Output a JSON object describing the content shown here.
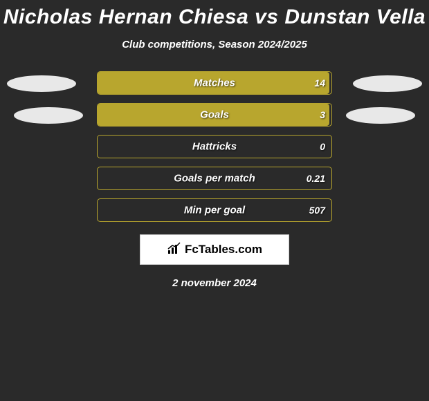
{
  "title": "Nicholas Hernan Chiesa vs Dunstan Vella",
  "subtitle": "Club competitions, Season 2024/2025",
  "date": "2 november 2024",
  "brand": {
    "text": "FcTables.com"
  },
  "colors": {
    "background": "#2a2a2a",
    "bar_fill": "#b8a62e",
    "bar_border": "#b8a62e",
    "ellipse": "#e8e8e8",
    "text": "#ffffff"
  },
  "stats": [
    {
      "label": "Matches",
      "value": "14",
      "fill_pct": 99
    },
    {
      "label": "Goals",
      "value": "3",
      "fill_pct": 99
    },
    {
      "label": "Hattricks",
      "value": "0",
      "fill_pct": 0
    },
    {
      "label": "Goals per match",
      "value": "0.21",
      "fill_pct": 0
    },
    {
      "label": "Min per goal",
      "value": "507",
      "fill_pct": 0
    }
  ],
  "side_ellipses": {
    "show_rows": [
      0,
      1
    ]
  }
}
